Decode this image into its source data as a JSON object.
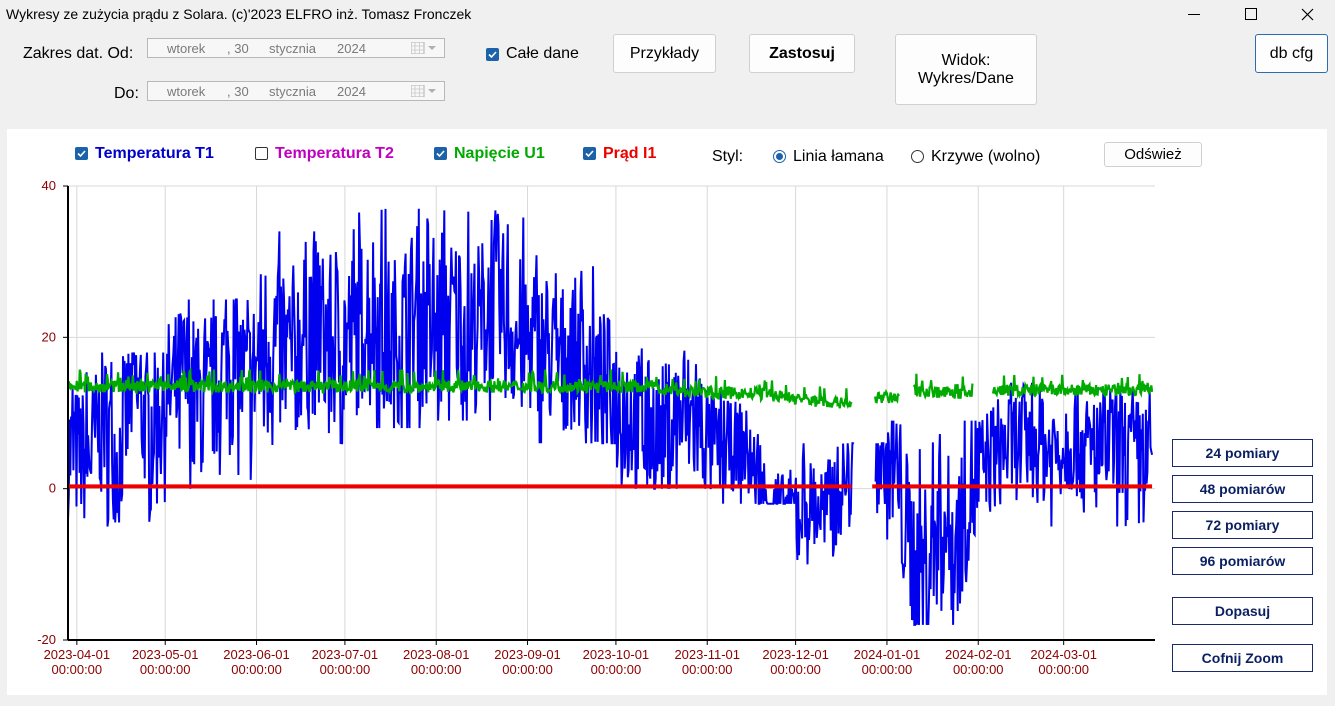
{
  "window": {
    "title": "Wykresy ze zużycia prądu  z Solara. (c)'2023 ELFRO inż. Tomasz Fronczek",
    "minimize": "—",
    "maximize": "☐",
    "close": "✕"
  },
  "controls": {
    "date_range_label": "Zakres dat. Od:",
    "to_label": "Do:",
    "date_from": {
      "weekday": "wtorek",
      "day": ", 30",
      "month": "stycznia",
      "year": "2024"
    },
    "date_to": {
      "weekday": "wtorek",
      "day": ", 30",
      "month": "stycznia",
      "year": "2024"
    },
    "all_data_label": "Całe dane",
    "all_data_checked": true,
    "examples_button": "Przykłady",
    "apply_button": "Zastosuj",
    "view_button_line1": "Widok:",
    "view_button_line2": "Wykres/Dane",
    "db_cfg_button": "db cfg"
  },
  "legend": {
    "t1": {
      "label": "Temperatura T1",
      "checked": true,
      "color": "#0000ee"
    },
    "t2": {
      "label": "Temperatura T2",
      "checked": false,
      "color": "#c000c0"
    },
    "u1": {
      "label": "Napięcie U1",
      "checked": true,
      "color": "#00aa00"
    },
    "i1": {
      "label": "Prąd I1",
      "checked": true,
      "color": "#ee0000"
    },
    "style_label": "Styl:",
    "style_line": "Linia łamana",
    "style_curve": "Krzywe (wolno)",
    "refresh_button": "Odśwież"
  },
  "side_buttons": {
    "p24": "24 pomiary",
    "p48": "48 pomiarów",
    "p72": "72 pomiary",
    "p96": "96 pomiarów",
    "fit": "Dopasuj",
    "undo_zoom": "Cofnij Zoom"
  },
  "chart_data": {
    "type": "line",
    "ylim": [
      -20,
      40
    ],
    "y_ticks": [
      "40",
      "20",
      "0",
      "-20"
    ],
    "x_ticks": [
      {
        "date": "2023-04-01",
        "time": "00:00:00"
      },
      {
        "date": "2023-05-01",
        "time": "00:00:00"
      },
      {
        "date": "2023-06-01",
        "time": "00:00:00"
      },
      {
        "date": "2023-07-01",
        "time": "00:00:00"
      },
      {
        "date": "2023-08-01",
        "time": "00:00:00"
      },
      {
        "date": "2023-09-01",
        "time": "00:00:00"
      },
      {
        "date": "2023-10-01",
        "time": "00:00:00"
      },
      {
        "date": "2023-11-01",
        "time": "00:00:00"
      },
      {
        "date": "2023-12-01",
        "time": "00:00:00"
      },
      {
        "date": "2024-01-01",
        "time": "00:00:00"
      },
      {
        "date": "2024-02-01",
        "time": "00:00:00"
      },
      {
        "date": "2024-03-01",
        "time": "00:00:00"
      }
    ],
    "grid": true,
    "series": [
      {
        "name": "Temperatura T1",
        "color": "#0000ee",
        "points": [
          [
            "2023-03-29",
            5
          ],
          [
            "2023-04-05",
            4
          ],
          [
            "2023-04-10",
            10
          ],
          [
            "2023-04-15",
            3
          ],
          [
            "2023-04-20",
            14
          ],
          [
            "2023-04-25",
            8
          ],
          [
            "2023-05-01",
            12
          ],
          [
            "2023-05-08",
            15
          ],
          [
            "2023-05-15",
            10
          ],
          [
            "2023-05-22",
            18
          ],
          [
            "2023-05-29",
            14
          ],
          [
            "2023-06-05",
            20
          ],
          [
            "2023-06-12",
            17
          ],
          [
            "2023-06-19",
            22
          ],
          [
            "2023-06-26",
            19
          ],
          [
            "2023-07-03",
            20
          ],
          [
            "2023-07-10",
            24
          ],
          [
            "2023-07-17",
            19
          ],
          [
            "2023-07-24",
            23
          ],
          [
            "2023-07-31",
            20
          ],
          [
            "2023-08-07",
            23
          ],
          [
            "2023-08-14",
            21
          ],
          [
            "2023-08-21",
            25
          ],
          [
            "2023-08-28",
            20
          ],
          [
            "2023-09-04",
            19
          ],
          [
            "2023-09-11",
            17
          ],
          [
            "2023-09-18",
            18
          ],
          [
            "2023-09-25",
            14
          ],
          [
            "2023-10-02",
            12
          ],
          [
            "2023-10-09",
            9
          ],
          [
            "2023-10-16",
            7
          ],
          [
            "2023-10-23",
            10
          ],
          [
            "2023-10-30",
            8
          ],
          [
            "2023-11-06",
            5
          ],
          [
            "2023-11-13",
            6
          ],
          [
            "2023-11-20",
            -1
          ],
          [
            "2023-11-27",
            -4
          ],
          [
            "2023-12-04",
            -2
          ],
          [
            "2023-12-11",
            -3
          ],
          [
            "2023-12-18",
            1
          ],
          [
            "2023-12-28",
            6
          ],
          [
            "2024-01-04",
            2
          ],
          [
            "2024-01-09",
            -8
          ],
          [
            "2024-01-14",
            -12
          ],
          [
            "2024-01-19",
            -3
          ],
          [
            "2024-01-24",
            -8
          ],
          [
            "2024-01-29",
            0
          ],
          [
            "2024-02-05",
            4
          ],
          [
            "2024-02-12",
            6
          ],
          [
            "2024-02-19",
            6
          ],
          [
            "2024-02-26",
            5
          ],
          [
            "2024-03-04",
            7
          ],
          [
            "2024-03-11",
            4
          ],
          [
            "2024-03-18",
            6
          ],
          [
            "2024-03-25",
            5
          ],
          [
            "2024-03-31",
            4
          ]
        ],
        "range_bands": [
          [
            "2023-04-01",
            -5,
            18
          ],
          [
            "2023-05-01",
            0,
            25
          ],
          [
            "2023-06-01",
            4,
            34
          ],
          [
            "2023-07-01",
            8,
            37
          ],
          [
            "2023-08-01",
            9,
            37
          ],
          [
            "2023-09-01",
            6,
            31
          ],
          [
            "2023-10-01",
            0,
            23
          ],
          [
            "2023-11-01",
            -2,
            13
          ],
          [
            "2023-12-01",
            -10,
            6
          ],
          [
            "2024-01-01",
            -18,
            9
          ],
          [
            "2024-02-01",
            -5,
            14
          ],
          [
            "2024-03-01",
            -6,
            13
          ]
        ]
      },
      {
        "name": "Napięcie U1",
        "color": "#00aa00",
        "points": [
          [
            "2023-03-29",
            13.5
          ],
          [
            "2023-10-10",
            13.5
          ],
          [
            "2023-10-25",
            12.8
          ],
          [
            "2023-11-20",
            12.5
          ],
          [
            "2023-12-10",
            11.5
          ],
          [
            "2023-12-20",
            11.2
          ],
          [
            "2023-12-25",
            0
          ],
          [
            "2023-12-28",
            12
          ],
          [
            "2024-01-05",
            12
          ],
          [
            "2024-01-08",
            0
          ],
          [
            "2024-01-10",
            13
          ],
          [
            "2024-01-30",
            12.5
          ],
          [
            "2024-02-05",
            0
          ],
          [
            "2024-02-06",
            13
          ],
          [
            "2024-03-31",
            13
          ]
        ]
      },
      {
        "name": "Prąd I1",
        "color": "#ee0000",
        "points": [
          [
            "2023-03-29",
            0.3
          ],
          [
            "2024-03-31",
            0.3
          ]
        ]
      }
    ]
  }
}
